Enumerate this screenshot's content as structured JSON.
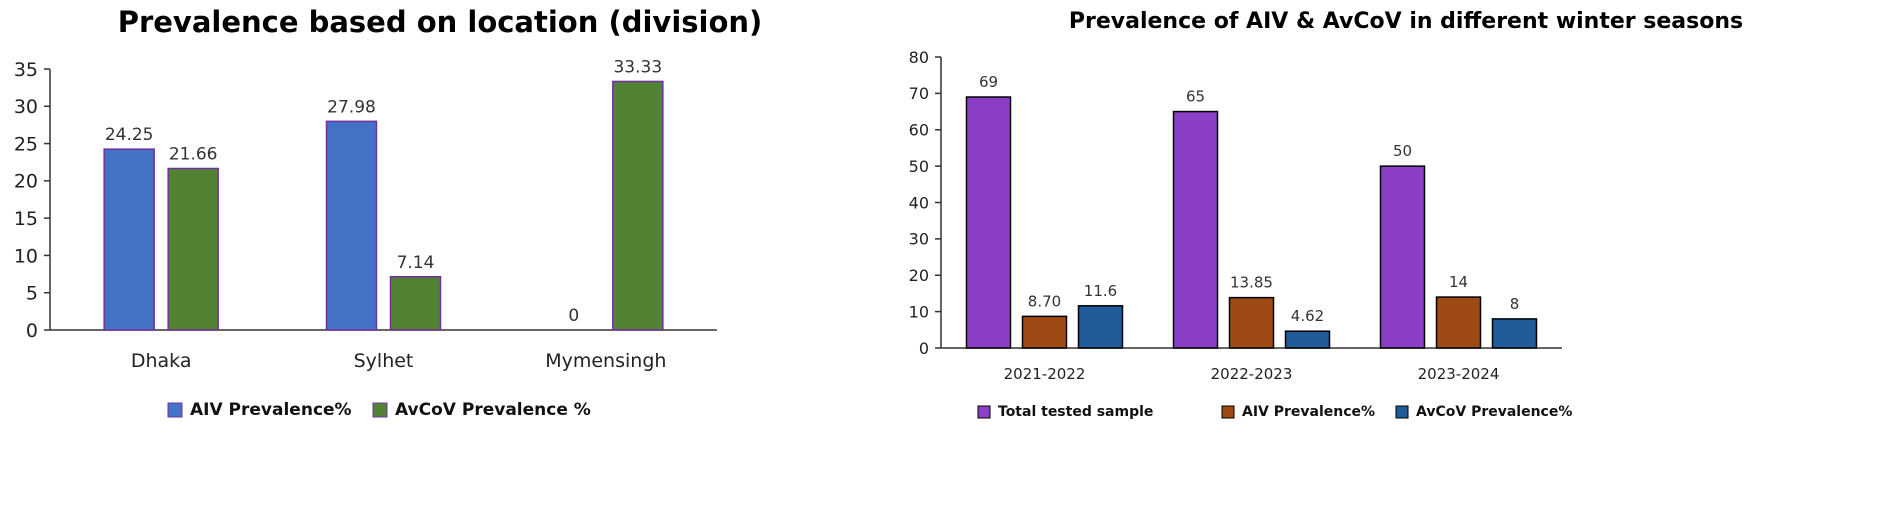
{
  "chart_data": [
    {
      "type": "bar",
      "title": "Prevalence based on location (division)",
      "categories": [
        "Dhaka",
        "Sylhet",
        "Mymensingh"
      ],
      "series": [
        {
          "name": "AIV Prevalence%",
          "color": "#4472C4",
          "values": [
            24.25,
            27.98,
            0
          ],
          "labels": [
            "24.25",
            "27.98",
            "0"
          ]
        },
        {
          "name": "AvCoV Prevalence %",
          "color": "#548235",
          "values": [
            21.66,
            7.14,
            33.33
          ],
          "labels": [
            "21.66",
            "7.14",
            "33.33"
          ]
        }
      ],
      "ylim": [
        0,
        35
      ],
      "yticks": [
        0,
        5,
        10,
        15,
        20,
        25,
        30,
        35
      ],
      "xlabel": "",
      "ylabel": "",
      "legend": "bottom",
      "bar_border_color": "#7030A0"
    },
    {
      "type": "bar",
      "title": "Prevalence of AIV & AvCoV in different winter seasons",
      "categories": [
        "2021-2022",
        "2022-2023",
        "2023-2024"
      ],
      "series": [
        {
          "name": "Total tested sample",
          "color": "#8B3FC6",
          "values": [
            69,
            65,
            50
          ],
          "labels": [
            "69",
            "65",
            "50"
          ]
        },
        {
          "name": "AIV Prevalence%",
          "color": "#9E4A14",
          "values": [
            8.7,
            13.85,
            14
          ],
          "labels": [
            "8.70",
            "13.85",
            "14"
          ]
        },
        {
          "name": "AvCoV Prevalence%",
          "color": "#1F5C99",
          "values": [
            11.6,
            4.62,
            8
          ],
          "labels": [
            "11.6",
            "4.62",
            "8"
          ]
        }
      ],
      "ylim": [
        0,
        80
      ],
      "yticks": [
        0,
        10,
        20,
        30,
        40,
        50,
        60,
        70,
        80
      ],
      "xlabel": "",
      "ylabel": "",
      "legend": "bottom",
      "bar_border_color": "#000000"
    }
  ]
}
